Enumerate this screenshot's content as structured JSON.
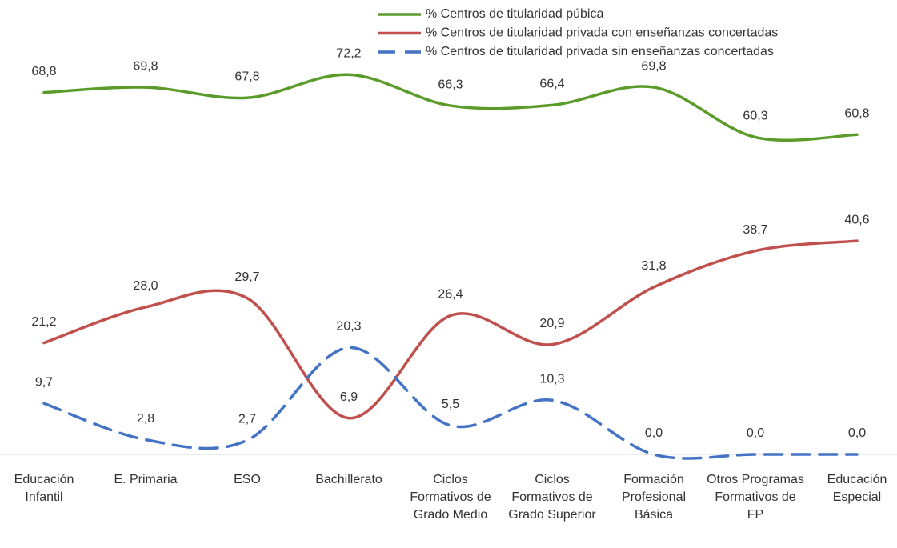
{
  "chart_data": {
    "type": "line",
    "categories": [
      "Educación Infantil",
      "E. Primaria",
      "ESO",
      "Bachillerato",
      "Ciclos Formativos de Grado Medio",
      "Ciclos Formativos de Grado Superior",
      "Formación Profesional Básica",
      "Otros Programas Formativos de FP",
      "Educación Especial"
    ],
    "ylim": [
      0,
      80
    ],
    "legend": "top",
    "series": [
      {
        "name": "% Centros de titularidad púbica",
        "color": "#5b9b2a",
        "dash": false,
        "values": [
          68.8,
          69.8,
          67.8,
          72.2,
          66.3,
          66.4,
          69.8,
          60.3,
          60.8
        ],
        "value_labels": [
          "68,8",
          "69,8",
          "67,8",
          "72,2",
          "66,3",
          "66,4",
          "69,8",
          "60,3",
          "60,8"
        ]
      },
      {
        "name": "% Centros de titularidad privada con enseñanzas concertadas",
        "color": "#c0504d",
        "dash": false,
        "values": [
          21.2,
          28.0,
          29.7,
          6.9,
          26.4,
          20.9,
          31.8,
          38.7,
          40.6
        ],
        "value_labels": [
          "21,2",
          "28,0",
          "29,7",
          "6,9",
          "26,4",
          "20,9",
          "31,8",
          "38,7",
          "40,6"
        ]
      },
      {
        "name": "% Centros de titularidad privada sin enseñanzas concertadas",
        "color": "#4472c4",
        "dash": true,
        "values": [
          9.7,
          2.8,
          2.7,
          20.3,
          5.5,
          10.3,
          0.0,
          0.0,
          0.0
        ],
        "value_labels": [
          "9,7",
          "2,8",
          "2,7",
          "20,3",
          "5,5",
          "10,3",
          "0,0",
          "0,0",
          "0,0"
        ]
      }
    ]
  }
}
